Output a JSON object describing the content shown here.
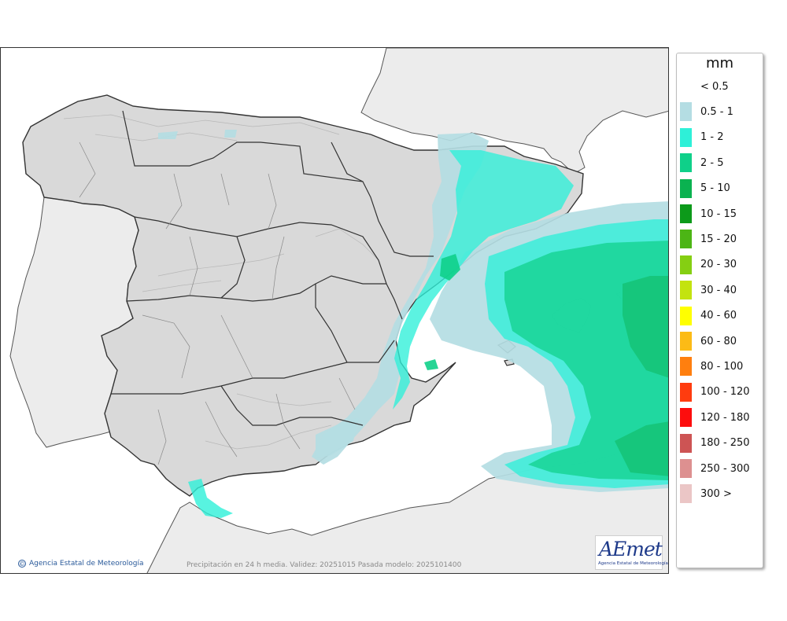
{
  "map": {
    "units": "mm",
    "footer": "Precipitación en 24 h media. Validez: 20251015 Pasada modelo: 2025101400",
    "credit": "Agencia Estatal de Meteorología",
    "logo_word": "AEmet",
    "logo_sub": "Agencia Estatal de Meteorología"
  },
  "legend": [
    {
      "label": "< 0.5",
      "color": "#ffffff"
    },
    {
      "label": "0.5 - 1",
      "color": "#b4dde3"
    },
    {
      "label": "1 - 2",
      "color": "#2ef0d8"
    },
    {
      "label": "2 - 5",
      "color": "#0fd089"
    },
    {
      "label": "5 - 10",
      "color": "#0ab250"
    },
    {
      "label": "10 - 15",
      "color": "#0c9a1a"
    },
    {
      "label": "15 - 20",
      "color": "#4cb515"
    },
    {
      "label": "20 - 30",
      "color": "#85cf12"
    },
    {
      "label": "30 - 40",
      "color": "#c3e30f"
    },
    {
      "label": "40 - 60",
      "color": "#ffff00"
    },
    {
      "label": "60 - 80",
      "color": "#fcbb16"
    },
    {
      "label": "80 - 100",
      "color": "#ff7f0f"
    },
    {
      "label": "100 - 120",
      "color": "#ff3c0f"
    },
    {
      "label": "120 - 180",
      "color": "#fd0d0d"
    },
    {
      "label": "180 - 250",
      "color": "#cd5454"
    },
    {
      "label": "250 - 300",
      "color": "#dd9090"
    },
    {
      "label": "300 >",
      "color": "#ebc6c6"
    }
  ]
}
